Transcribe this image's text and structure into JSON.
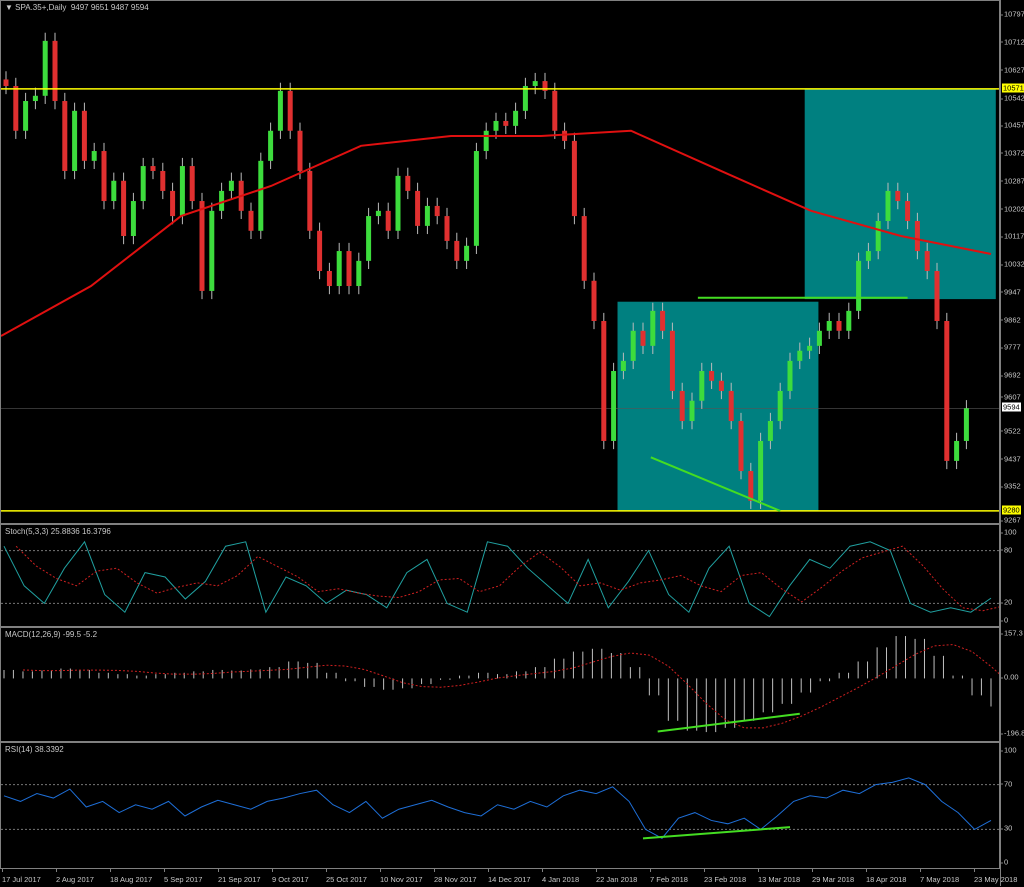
{
  "header": {
    "symbol_label": "SPA.35+,Daily",
    "ohlc": "9497 9651 9487 9594"
  },
  "colors": {
    "bull": "#3ddc3d",
    "bear": "#e03030",
    "ma": "#e01010",
    "level": "#ffff00",
    "zone": "#008080",
    "trendline": "#44dd22",
    "stoch_main": "#20a0a0",
    "stoch_signal": "#d02020",
    "macd_hist": "#c0c0c0",
    "macd_signal": "#d02020",
    "rsi": "#1e6fd8"
  },
  "chart_data": [
    {
      "type": "candlestick",
      "title": "SPA.35+,Daily",
      "ylim": [
        9243,
        10840
      ],
      "y_ticks": [
        "10797",
        "10712",
        "10627",
        "10542",
        "10457",
        "10372",
        "10287",
        "10202",
        "10117",
        "10032",
        "9947",
        "9862",
        "9777",
        "9692",
        "9607",
        "9522",
        "9437",
        "9352",
        "9267"
      ],
      "closes": [
        10580,
        10443,
        10534,
        10550,
        10718,
        10534,
        10320,
        10504,
        10351,
        10381,
        10228,
        10290,
        10121,
        10228,
        10335,
        10320,
        10259,
        10182,
        10335,
        10228,
        9953,
        10198,
        10259,
        10290,
        10198,
        10137,
        10351,
        10443,
        10565,
        10443,
        10320,
        10137,
        10014,
        9968,
        10075,
        9968,
        10045,
        10182,
        10198,
        10137,
        10305,
        10259,
        10152,
        10213,
        10182,
        10106,
        10045,
        10091,
        10381,
        10443,
        10473,
        10458,
        10504,
        10580,
        10595,
        10565,
        10443,
        10412,
        10182,
        9984,
        9861,
        9494,
        9708,
        9739,
        9831,
        9785,
        9892,
        9831,
        9647,
        9555,
        9617,
        9708,
        9678,
        9647,
        9555,
        9402,
        9311,
        9494,
        9555,
        9647,
        9739,
        9770,
        9785,
        9831,
        9861,
        9831,
        9892,
        10045,
        10075,
        10167,
        10259,
        10228,
        10167,
        10075,
        10014,
        9861,
        9433,
        9494,
        9594
      ],
      "moving_average": [
        9815,
        9968,
        10182,
        10274,
        10397,
        10427,
        10427,
        10443,
        10320,
        10198,
        10121,
        10066
      ],
      "levels": [
        {
          "value": 10571,
          "label": "10571"
        },
        {
          "value": 9280,
          "label": "9280"
        }
      ],
      "current_price": {
        "value": 9594,
        "label": "9594"
      },
      "zones": [
        {
          "from_bar": 62.4,
          "to_bar": 82.9,
          "top": 9920,
          "bottom": 9280
        },
        {
          "from_bar": 81.5,
          "to_bar": 101,
          "top": 10571,
          "bottom": 9928
        }
      ],
      "trendlines": [
        {
          "bar1": 65.8,
          "y1": 9444,
          "bar2": 79,
          "y2": 9280
        },
        {
          "bar1": 70.6,
          "y1": 9932,
          "bar2": 92,
          "y2": 9932
        }
      ],
      "x_tick_labels": [
        "17 Jul 2017",
        "2 Aug 2017",
        "18 Aug 2017",
        "5 Sep 2017",
        "21 Sep 2017",
        "9 Oct 2017",
        "25 Oct 2017",
        "10 Nov 2017",
        "28 Nov 2017",
        "14 Dec 2017",
        "4 Jan 2018",
        "22 Jan 2018",
        "7 Feb 2018",
        "23 Feb 2018",
        "13 Mar 2018",
        "29 Mar 2018",
        "18 Apr 2018",
        "7 May 2018",
        "23 May 2018"
      ]
    },
    {
      "type": "line",
      "title": "Stoch(5,3,3) 25.8836 16.3796",
      "ylim": [
        0,
        100
      ],
      "y_ticks": [
        "100",
        "80",
        "20",
        "0"
      ],
      "levels": [
        80,
        20
      ],
      "main": [
        85,
        40,
        20,
        60,
        90,
        30,
        10,
        55,
        50,
        25,
        45,
        85,
        90,
        10,
        50,
        40,
        20,
        35,
        30,
        15,
        55,
        70,
        20,
        10,
        90,
        85,
        60,
        40,
        20,
        70,
        15,
        45,
        80,
        30,
        10,
        60,
        85,
        20,
        5,
        40,
        70,
        60,
        85,
        90,
        80,
        20,
        10,
        15,
        10,
        26
      ]
    },
    {
      "type": "bar",
      "title": "MACD(12,26,9) -99.5 -5.2",
      "ylim": [
        -196.8,
        157.3
      ],
      "y_ticks": [
        "157.3",
        "0.00",
        "-196.8"
      ],
      "histogram": [
        30,
        25,
        28,
        35,
        30,
        20,
        15,
        10,
        15,
        20,
        25,
        30,
        28,
        32,
        40,
        60,
        55,
        20,
        -10,
        -30,
        -40,
        -35,
        -20,
        -5,
        10,
        20,
        15,
        25,
        40,
        70,
        95,
        105,
        90,
        40,
        -60,
        -150,
        -185,
        -190,
        -175,
        -150,
        -120,
        -90,
        -50,
        -10,
        20,
        60,
        110,
        150,
        140,
        80,
        10,
        -60,
        -99.5
      ],
      "trendline": {
        "bar1": 66.5,
        "y1": -188,
        "bar2": 81,
        "y2": -125
      }
    },
    {
      "type": "line",
      "title": "RSI(14) 38.3392",
      "ylim": [
        0,
        100
      ],
      "y_ticks": [
        "100",
        "70",
        "30",
        "0"
      ],
      "levels": [
        70,
        30
      ],
      "rsi": [
        60,
        55,
        62,
        58,
        66,
        50,
        55,
        45,
        52,
        48,
        55,
        42,
        50,
        56,
        52,
        48,
        55,
        58,
        62,
        65,
        52,
        45,
        55,
        40,
        48,
        52,
        56,
        50,
        45,
        42,
        52,
        48,
        55,
        50,
        60,
        65,
        62,
        68,
        55,
        30,
        22,
        40,
        45,
        38,
        35,
        40,
        30,
        42,
        55,
        60,
        58,
        65,
        62,
        70,
        72,
        76,
        70,
        55,
        45,
        30,
        38
      ],
      "trendline": {
        "bar1": 65,
        "y1": 22,
        "bar2": 80,
        "y2": 32
      }
    }
  ]
}
